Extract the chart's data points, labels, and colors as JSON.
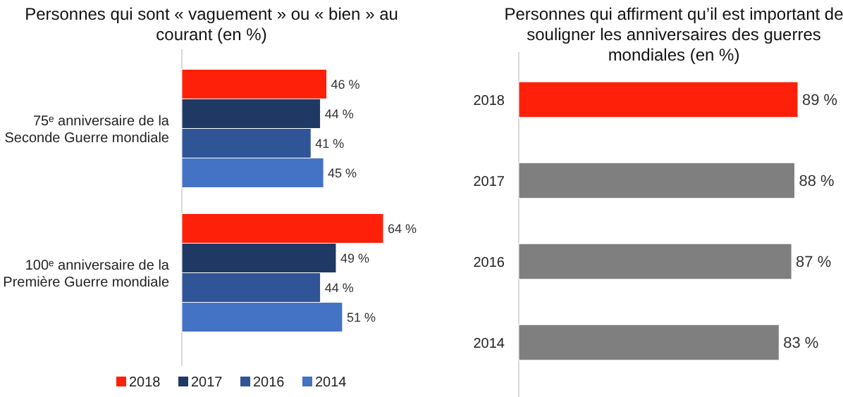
{
  "chart_data": [
    {
      "type": "bar",
      "orientation": "horizontal",
      "title": "Personnes qui sont « vaguement » ou « bien » au courant (en %)",
      "categories": [
        "75ᵉ anniversaire de la Seconde Guerre mondiale",
        "100ᵉ anniversaire de la Première Guerre mondiale"
      ],
      "series": [
        {
          "name": "2018",
          "color": "#ff200a",
          "values": [
            46,
            64
          ],
          "value_labels": [
            "46 %",
            "64 %"
          ]
        },
        {
          "name": "2017",
          "color": "#203864",
          "values": [
            44,
            49
          ],
          "value_labels": [
            "44 %",
            "49 %"
          ]
        },
        {
          "name": "2016",
          "color": "#2f5597",
          "values": [
            41,
            44
          ],
          "value_labels": [
            "41 %",
            "44 %"
          ]
        },
        {
          "name": "2014",
          "color": "#4472c4",
          "values": [
            45,
            51
          ],
          "value_labels": [
            "45 %",
            "51 %"
          ]
        }
      ],
      "legend": "bottom"
    },
    {
      "type": "bar",
      "orientation": "horizontal",
      "title": "Personnes qui affirment qu’il est important de souligner les anniversaires des guerres mondiales (en %)",
      "categories": [
        "2018",
        "2017",
        "2016",
        "2014"
      ],
      "values": [
        89,
        88,
        87,
        83
      ],
      "colors": [
        "#ff200a",
        "#7f7f7f",
        "#7f7f7f",
        "#7f7f7f"
      ],
      "value_labels": [
        "89 %",
        "88 %",
        "87 %",
        "83 %"
      ]
    }
  ]
}
